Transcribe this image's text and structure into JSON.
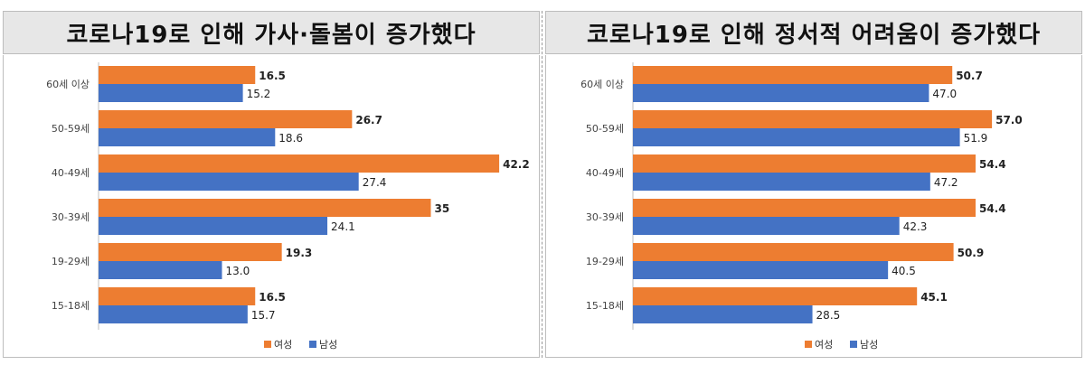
{
  "colors": {
    "female": "#ED7D31",
    "male": "#4472C4"
  },
  "chart_data": [
    {
      "type": "bar",
      "orientation": "horizontal",
      "title": "코로나19로 인해 가사·돌봄이 증가했다",
      "categories": [
        "60세 이상",
        "50-59세",
        "40-49세",
        "30-39세",
        "19-29세",
        "15-18세"
      ],
      "series": [
        {
          "name": "여성",
          "values": [
            16.5,
            26.7,
            42.2,
            35,
            19.3,
            16.5
          ]
        },
        {
          "name": "남성",
          "values": [
            15.2,
            18.6,
            27.4,
            24.1,
            13.0,
            15.7
          ]
        }
      ],
      "value_labels": [
        [
          "16.5",
          "26.7",
          "42.2",
          "35",
          "19.3",
          "16.5"
        ],
        [
          "15.2",
          "18.6",
          "27.4",
          "24.1",
          "13.0",
          "15.7"
        ]
      ],
      "xlim": [
        0,
        50
      ],
      "grid": false,
      "legend": "bottom"
    },
    {
      "type": "bar",
      "orientation": "horizontal",
      "title": "코로나19로 인해 정서적 어려움이 증가했다",
      "categories": [
        "60세 이상",
        "50-59세",
        "40-49세",
        "30-39세",
        "19-29세",
        "15-18세"
      ],
      "series": [
        {
          "name": "여성",
          "values": [
            50.7,
            57.0,
            54.4,
            54.4,
            50.9,
            45.1
          ]
        },
        {
          "name": "남성",
          "values": [
            47.0,
            51.9,
            47.2,
            42.3,
            40.5,
            28.5
          ]
        }
      ],
      "value_labels": [
        [
          "50.7",
          "57.0",
          "54.4",
          "54.4",
          "50.9",
          "45.1"
        ],
        [
          "47.0",
          "51.9",
          "47.2",
          "42.3",
          "40.5",
          "28.5"
        ]
      ],
      "xlim": [
        0,
        60
      ],
      "grid": false,
      "legend": "bottom"
    }
  ]
}
